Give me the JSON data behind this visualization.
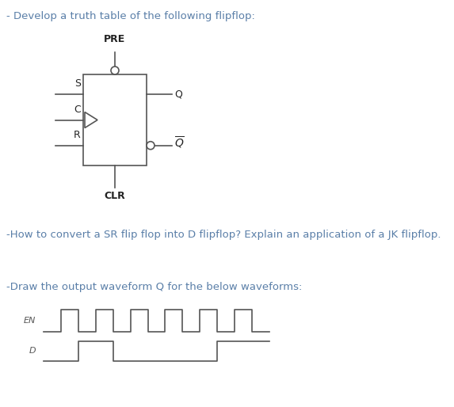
{
  "title1": "- Develop a truth table of the following flipflop:",
  "title2": "-How to convert a SR flip flop into D flipflop? Explain an application of a JK flipflop.",
  "title3": "-Draw the output waveform Q for the below waveforms:",
  "title1_color": "#5a7fa8",
  "title2_color": "#5a7fa8",
  "title3_color": "#5a7fa8",
  "bg_color": "#ffffff",
  "line_color": "#555555",
  "en_waveform_x": [
    0,
    1,
    1,
    2,
    2,
    3,
    3,
    4,
    4,
    5,
    5,
    6,
    6,
    7,
    7,
    8,
    8,
    9,
    9,
    10,
    10,
    11,
    11,
    12,
    12,
    13
  ],
  "en_waveform_y": [
    0,
    0,
    1,
    1,
    0,
    0,
    1,
    1,
    0,
    0,
    1,
    1,
    0,
    0,
    1,
    1,
    0,
    0,
    1,
    1,
    0,
    0,
    1,
    1,
    0,
    0
  ],
  "d_waveform_x": [
    0,
    2,
    2,
    4,
    4,
    10,
    10,
    13
  ],
  "d_waveform_y": [
    0,
    0,
    1,
    1,
    0,
    0,
    1,
    1
  ]
}
